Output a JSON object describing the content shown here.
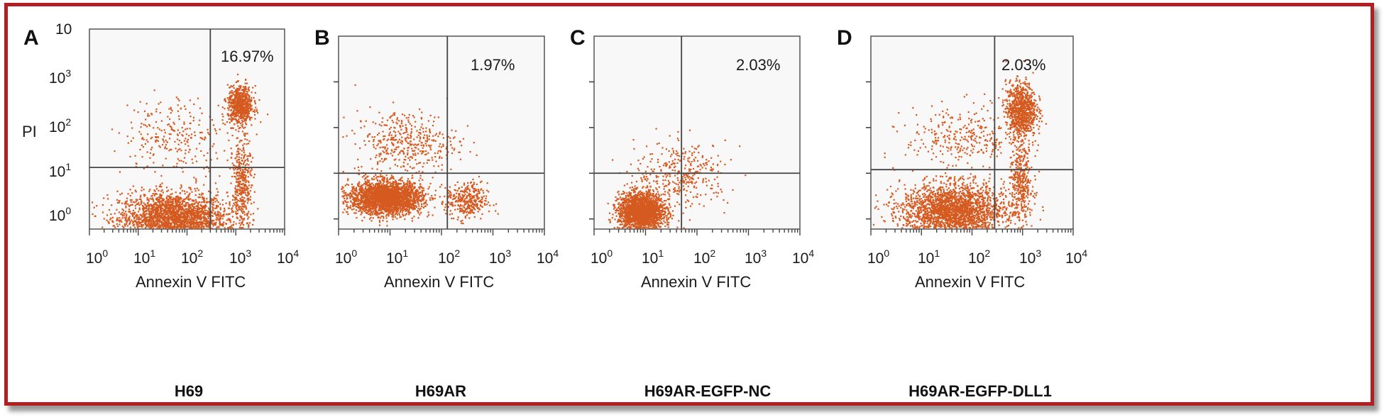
{
  "figure": {
    "border_color": "#b41e23",
    "dot_color": "#d55a20",
    "y_axis_label": "PI",
    "x_axis_label": "Annexin V FITC",
    "x_ticks": [
      "0",
      "1",
      "2",
      "3",
      "4"
    ],
    "y_ticks_panel_a": [
      "0",
      "1",
      "2",
      "3"
    ],
    "y_top_tick_panel_a": "10"
  },
  "chart_data": [
    {
      "type": "scatter",
      "panel": "A",
      "sample": "H69",
      "quadrant_label": "16.97%",
      "xlabel": "Annexin V FITC",
      "ylabel": "PI",
      "x_scale": "log10",
      "y_scale": "log10",
      "xlim": [
        1,
        10000
      ],
      "ylim": [
        0.6,
        10000
      ],
      "x_gate": 300,
      "y_gate": 12,
      "clusters": [
        {
          "cx": 50,
          "cy": 1.0,
          "sx": 0.55,
          "sy": 0.28,
          "n": 2600
        },
        {
          "cx": 1200,
          "cy": 250,
          "sx": 0.13,
          "sy": 0.2,
          "n": 700
        },
        {
          "cx": 1300,
          "cy": 5,
          "sx": 0.1,
          "sy": 0.5,
          "n": 420
        },
        {
          "cx": 60,
          "cy": 60,
          "sx": 0.55,
          "sy": 0.4,
          "n": 260
        }
      ]
    },
    {
      "type": "scatter",
      "panel": "B",
      "sample": "H69AR",
      "quadrant_label": "1.97%",
      "xlabel": "Annexin V FITC",
      "x_scale": "log10",
      "y_scale": "log10",
      "xlim": [
        1,
        10000
      ],
      "ylim": [
        0.6,
        10000
      ],
      "x_gate": 130,
      "y_gate": 10,
      "clusters": [
        {
          "cx": 8,
          "cy": 3,
          "sx": 0.35,
          "sy": 0.18,
          "n": 2600
        },
        {
          "cx": 300,
          "cy": 2.5,
          "sx": 0.2,
          "sy": 0.2,
          "n": 350
        },
        {
          "cx": 20,
          "cy": 50,
          "sx": 0.5,
          "sy": 0.35,
          "n": 420
        }
      ]
    },
    {
      "type": "scatter",
      "panel": "C",
      "sample": "H69AR-EGFP-NC",
      "quadrant_label": "2.03%",
      "xlabel": "Annexin V FITC",
      "x_scale": "log10",
      "y_scale": "log10",
      "xlim": [
        1,
        10000
      ],
      "ylim": [
        0.6,
        10000
      ],
      "x_gate": 50,
      "y_gate": 10,
      "clusters": [
        {
          "cx": 8,
          "cy": 1.5,
          "sx": 0.22,
          "sy": 0.2,
          "n": 2200
        },
        {
          "cx": 50,
          "cy": 10,
          "sx": 0.45,
          "sy": 0.35,
          "n": 350
        }
      ]
    },
    {
      "type": "scatter",
      "panel": "D",
      "sample": "H69AR-EGFP-DLL1",
      "quadrant_label": "2.03%",
      "xlabel": "Annexin V FITC",
      "x_scale": "log10",
      "y_scale": "log10",
      "xlim": [
        1,
        10000
      ],
      "ylim": [
        0.6,
        10000
      ],
      "x_gate": 280,
      "y_gate": 12,
      "clusters": [
        {
          "cx": 40,
          "cy": 1.5,
          "sx": 0.5,
          "sy": 0.3,
          "n": 2400
        },
        {
          "cx": 900,
          "cy": 250,
          "sx": 0.15,
          "sy": 0.3,
          "n": 900
        },
        {
          "cx": 900,
          "cy": 6,
          "sx": 0.12,
          "sy": 0.45,
          "n": 400
        },
        {
          "cx": 60,
          "cy": 60,
          "sx": 0.55,
          "sy": 0.35,
          "n": 300
        }
      ]
    }
  ]
}
